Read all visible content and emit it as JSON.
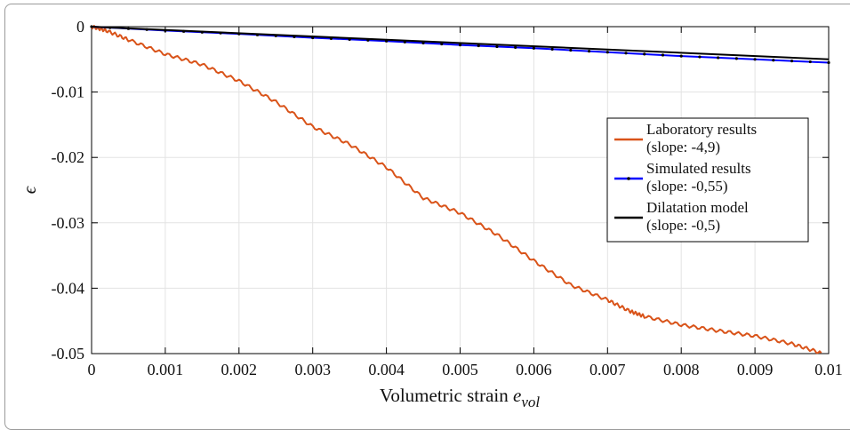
{
  "chart_data": {
    "type": "line",
    "title": "",
    "xlabel": "Volumetric strain ",
    "xlabel_sub": "vol",
    "xlabel_var": "e",
    "ylabel": "ϵ",
    "xlim": [
      0,
      0.01
    ],
    "ylim": [
      -0.05,
      0
    ],
    "xticks": [
      0,
      0.001,
      0.002,
      0.003,
      0.004,
      0.005,
      0.006,
      0.007,
      0.008,
      0.009,
      0.01
    ],
    "xtick_labels": [
      "0",
      "0.001",
      "0.002",
      "0.003",
      "0.004",
      "0.005",
      "0.006",
      "0.007",
      "0.008",
      "0.009",
      "0.01"
    ],
    "yticks": [
      0,
      -0.01,
      -0.02,
      -0.03,
      -0.04,
      -0.05
    ],
    "ytick_labels": [
      "0",
      "-0.01",
      "-0.02",
      "-0.03",
      "-0.04",
      "-0.05"
    ],
    "grid": true,
    "legend_position": "right",
    "series": [
      {
        "name": "Laboratory results",
        "name_line2": "(slope: -4,9)",
        "color": "#d95319",
        "marker": "none",
        "x": [
          0,
          0.0002,
          0.0005,
          0.001,
          0.0015,
          0.002,
          0.0025,
          0.003,
          0.0035,
          0.004,
          0.0045,
          0.005,
          0.0055,
          0.006,
          0.0065,
          0.007,
          0.0073,
          0.0075,
          0.008,
          0.0085,
          0.009,
          0.0095,
          0.0099
        ],
        "y": [
          0,
          -0.0006,
          -0.002,
          -0.0042,
          -0.0058,
          -0.0083,
          -0.0115,
          -0.0153,
          -0.018,
          -0.0215,
          -0.0262,
          -0.0285,
          -0.0318,
          -0.0358,
          -0.0395,
          -0.0418,
          -0.0435,
          -0.0443,
          -0.0456,
          -0.0465,
          -0.0473,
          -0.0485,
          -0.0499
        ]
      },
      {
        "name": "Simulated results",
        "name_line2": "(slope: -0,55)",
        "color": "#0000ff",
        "marker": "dot",
        "x": [
          0,
          0.001,
          0.002,
          0.003,
          0.004,
          0.005,
          0.006,
          0.007,
          0.008,
          0.009,
          0.01
        ],
        "y": [
          0,
          -0.0006,
          -0.0011,
          -0.0017,
          -0.0022,
          -0.0028,
          -0.0033,
          -0.0039,
          -0.0045,
          -0.005,
          -0.0055
        ]
      },
      {
        "name": "Dilatation model",
        "name_line2": "(slope: -0,5)",
        "color": "#000000",
        "marker": "none",
        "x": [
          0,
          0.01
        ],
        "y": [
          0,
          -0.005
        ]
      }
    ]
  }
}
